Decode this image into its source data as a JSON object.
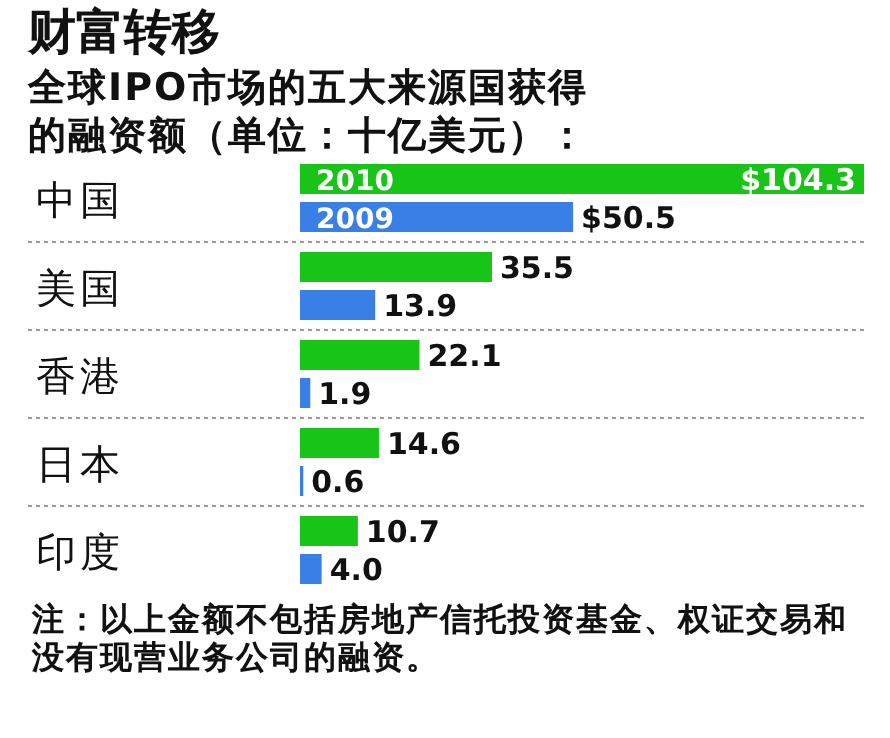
{
  "chart_data": {
    "type": "bar",
    "orientation": "horizontal",
    "title": "财富转移",
    "subtitle": "全球IPO市场的五大来源国获得的融资额（单位：十亿美元）：",
    "categories": [
      "中国",
      "美国",
      "香港",
      "日本",
      "印度"
    ],
    "series": [
      {
        "name": "2010",
        "color": "#19c419",
        "values": [
          104.3,
          35.5,
          22.1,
          14.6,
          10.7
        ],
        "value_labels": [
          "$104.3",
          "35.5",
          "22.1",
          "14.6",
          "10.7"
        ]
      },
      {
        "name": "2009",
        "color": "#3a7fe6",
        "values": [
          50.5,
          13.9,
          1.9,
          0.6,
          4.0
        ],
        "value_labels": [
          "$50.5",
          "13.9",
          "1.9",
          "0.6",
          "4.0"
        ]
      }
    ],
    "annotations": [
      "注：以上金额不包括房地产信托投资基金、权证交易和没有现营业务公司的融资。"
    ]
  }
}
